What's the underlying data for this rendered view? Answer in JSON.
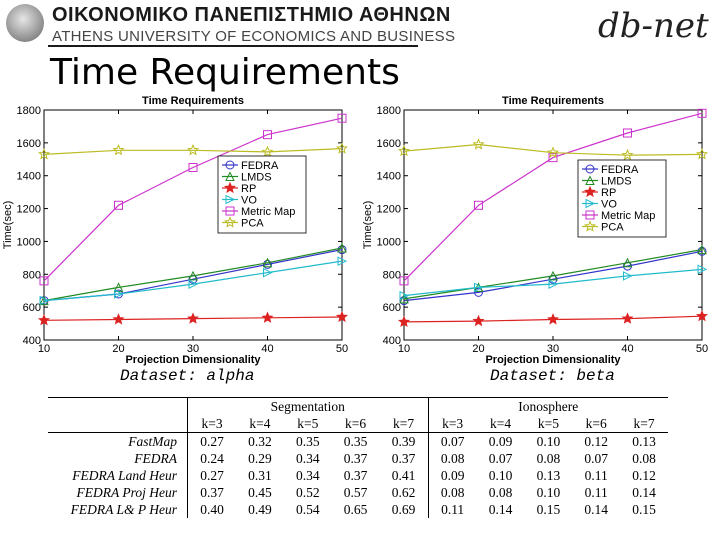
{
  "header": {
    "university_greek": "ΟΙΚΟΝΟΜΙΚΟ ΠΑΝΕΠΙΣΤΗΜΙΟ ΑΘΗΝΩΝ",
    "university_english": "ATHENS UNIVERSITY OF ECONOMICS AND BUSINESS",
    "logo_text": "db-net"
  },
  "slide": {
    "title": "Time Requirements"
  },
  "labels": {
    "alpha": "Dataset: alpha",
    "beta": "Dataset: beta"
  },
  "chart_data": [
    {
      "type": "line",
      "title": "Time Requirements",
      "xlabel": "Projection Dimensionality",
      "ylabel": "Time(sec)",
      "xlim": [
        10,
        50
      ],
      "ylim": [
        400,
        1800
      ],
      "xticks": [
        10,
        20,
        30,
        40,
        50
      ],
      "yticks": [
        400,
        600,
        800,
        1000,
        1200,
        1400,
        1600,
        1800
      ],
      "legend_position": "right",
      "x": [
        10,
        20,
        30,
        40,
        50
      ],
      "series": [
        {
          "name": "FEDRA",
          "values": [
            640,
            680,
            770,
            860,
            950
          ],
          "color": "#3333cc",
          "marker": "circle"
        },
        {
          "name": "LMDS",
          "values": [
            640,
            720,
            790,
            870,
            960
          ],
          "color": "#228b22",
          "marker": "triangle"
        },
        {
          "name": "RP",
          "values": [
            520,
            525,
            530,
            535,
            540
          ],
          "color": "#dd2222",
          "marker": "star"
        },
        {
          "name": "VO",
          "values": [
            640,
            680,
            740,
            810,
            880
          ],
          "color": "#22bbcc",
          "marker": "triangle-right"
        },
        {
          "name": "Metric Map",
          "values": [
            760,
            1220,
            1450,
            1650,
            1750
          ],
          "color": "#cc33cc",
          "marker": "square"
        },
        {
          "name": "PCA",
          "values": [
            1530,
            1555,
            1555,
            1545,
            1565
          ],
          "color": "#bbbb22",
          "marker": "star-outline"
        }
      ]
    },
    {
      "type": "line",
      "title": "Time Requirements",
      "xlabel": "Projection Dimensionality",
      "ylabel": "Time(sec)",
      "xlim": [
        10,
        50
      ],
      "ylim": [
        400,
        1800
      ],
      "xticks": [
        10,
        20,
        30,
        40,
        50
      ],
      "yticks": [
        400,
        600,
        800,
        1000,
        1200,
        1400,
        1600,
        1800
      ],
      "legend_position": "right",
      "x": [
        10,
        20,
        30,
        40,
        50
      ],
      "series": [
        {
          "name": "FEDRA",
          "values": [
            640,
            690,
            770,
            850,
            940
          ],
          "color": "#3333cc",
          "marker": "circle"
        },
        {
          "name": "LMDS",
          "values": [
            650,
            720,
            790,
            870,
            950
          ],
          "color": "#228b22",
          "marker": "triangle"
        },
        {
          "name": "RP",
          "values": [
            510,
            515,
            525,
            530,
            545
          ],
          "color": "#dd2222",
          "marker": "star"
        },
        {
          "name": "VO",
          "values": [
            670,
            720,
            740,
            790,
            830
          ],
          "color": "#22bbcc",
          "marker": "triangle-right"
        },
        {
          "name": "Metric Map",
          "values": [
            760,
            1220,
            1510,
            1660,
            1780
          ],
          "color": "#cc33cc",
          "marker": "square"
        },
        {
          "name": "PCA",
          "values": [
            1550,
            1590,
            1540,
            1525,
            1530
          ],
          "color": "#bbbb22",
          "marker": "star-outline"
        }
      ]
    }
  ],
  "table": {
    "groups": [
      "Segmentation",
      "Ionosphere"
    ],
    "k_headers": [
      "k=3",
      "k=4",
      "k=5",
      "k=6",
      "k=7",
      "k=3",
      "k=4",
      "k=5",
      "k=6",
      "k=7"
    ],
    "rows": [
      {
        "method": "FastMap",
        "values": [
          "0.27",
          "0.32",
          "0.35",
          "0.35",
          "0.39",
          "0.07",
          "0.09",
          "0.10",
          "0.12",
          "0.13"
        ]
      },
      {
        "method": "FEDRA",
        "values": [
          "0.24",
          "0.29",
          "0.34",
          "0.37",
          "0.37",
          "0.08",
          "0.07",
          "0.08",
          "0.07",
          "0.08"
        ]
      },
      {
        "method": "FEDRA Land Heur",
        "values": [
          "0.27",
          "0.31",
          "0.34",
          "0.37",
          "0.41",
          "0.09",
          "0.10",
          "0.13",
          "0.11",
          "0.12"
        ]
      },
      {
        "method": "FEDRA Proj Heur",
        "values": [
          "0.37",
          "0.45",
          "0.52",
          "0.57",
          "0.62",
          "0.08",
          "0.08",
          "0.10",
          "0.11",
          "0.14"
        ]
      },
      {
        "method": "FEDRA L& P Heur",
        "values": [
          "0.40",
          "0.49",
          "0.54",
          "0.65",
          "0.69",
          "0.11",
          "0.14",
          "0.15",
          "0.14",
          "0.15"
        ]
      }
    ]
  }
}
